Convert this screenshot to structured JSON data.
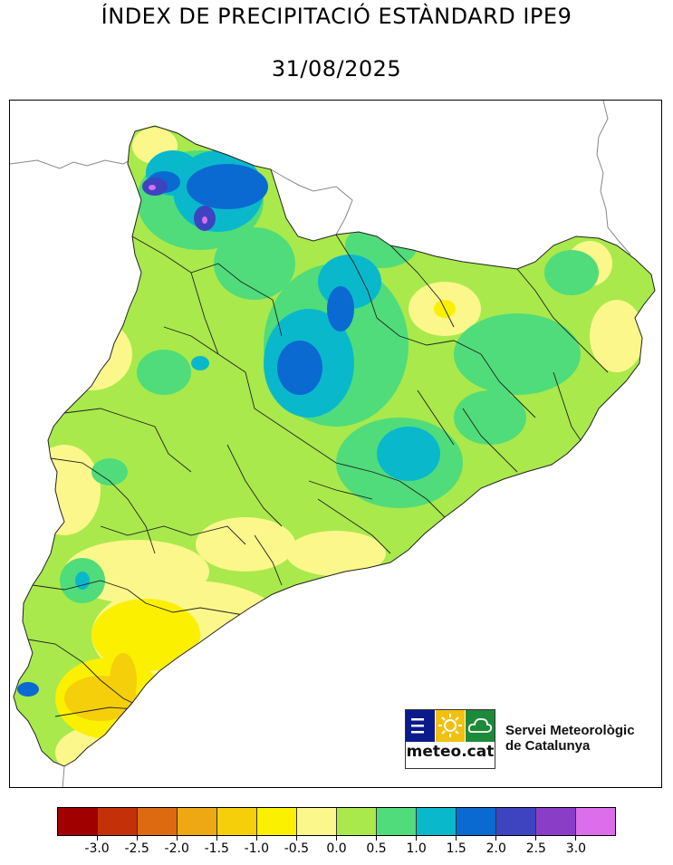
{
  "title": "ÍNDEX DE PRECIPITACIÓ ESTÀNDARD IPE9",
  "date": "31/08/2025",
  "logo": {
    "text": "meteo.cat",
    "icons": [
      "lines-icon",
      "sun-icon",
      "cloud-icon"
    ],
    "colors": [
      "#0a1a8a",
      "#f2c010",
      "#1d8a3a"
    ]
  },
  "organization": {
    "line1": "Servei Meteorològic",
    "line2": "de Catalunya"
  },
  "colorbar": {
    "colors": [
      "#a00000",
      "#c43008",
      "#dd6a10",
      "#eea814",
      "#f5cf0a",
      "#fbf000",
      "#fbf78a",
      "#a9e94c",
      "#50dc7a",
      "#0ab8cc",
      "#0a6ad2",
      "#3e44c0",
      "#8a3ec8",
      "#dc6eec"
    ],
    "tick_labels": [
      "-3.0",
      "-2.5",
      "-2.0",
      "-1.5",
      "-1.0",
      "-0.5",
      "0.0",
      "0.5",
      "1.0",
      "1.5",
      "2.0",
      "2.5",
      "3.0"
    ]
  },
  "map_colors": {
    "land_base": "#a9e94c",
    "wet_1": "#50dc7a",
    "wet_2": "#0ab8cc",
    "wet_3": "#0a6ad2",
    "wet_4": "#3e44c0",
    "wet_5": "#dc6eec",
    "dry_1": "#fbf78a",
    "dry_2": "#fbf000",
    "dry_3": "#f5cf0a",
    "border": "#222222",
    "country_line": "#888888"
  }
}
